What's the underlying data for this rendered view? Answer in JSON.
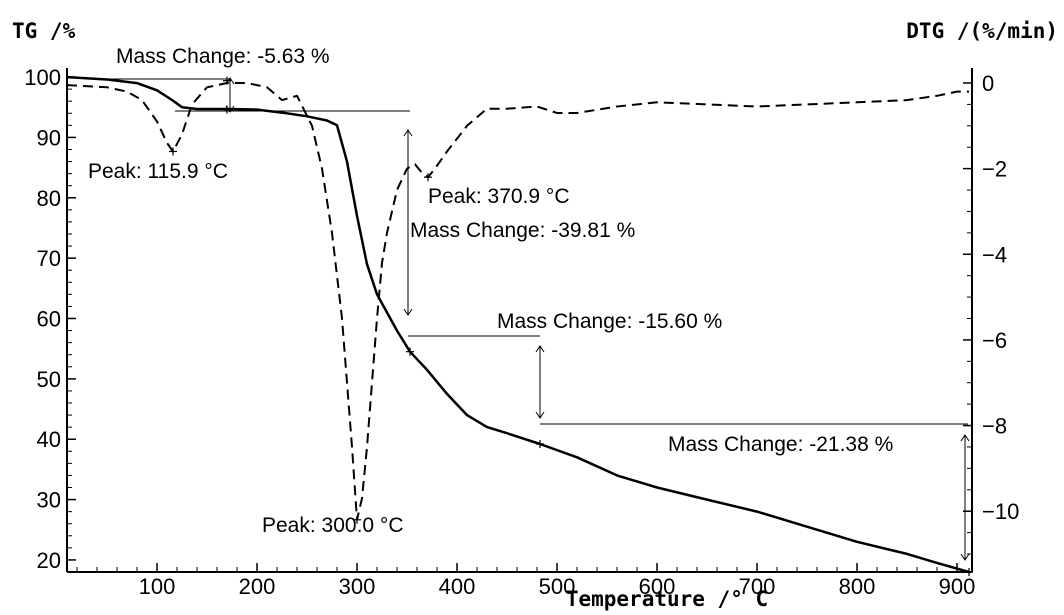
{
  "chart_data": {
    "type": "line",
    "left_axis_title": "TG /%",
    "right_axis_title": "DTG /(%/min)",
    "xlabel": "Temperature /° C",
    "xlim": [
      10,
      915
    ],
    "ylim_left": [
      18,
      101.5
    ],
    "ylim_right": [
      -11.42,
      0.35
    ],
    "x_ticks": [
      100,
      200,
      300,
      400,
      500,
      600,
      700,
      800,
      900
    ],
    "y_left_ticks": [
      20,
      30,
      40,
      50,
      60,
      70,
      80,
      90,
      100
    ],
    "y_right_ticks": [
      0,
      -2,
      -4,
      -6,
      -8,
      -10
    ],
    "grid": false,
    "series": [
      {
        "style": "solid",
        "axis": "left",
        "x": [
          10,
          50,
          80,
          100,
          115,
          125,
          140,
          170,
          200,
          230,
          250,
          270,
          280,
          290,
          300,
          310,
          320,
          330,
          340,
          353,
          370,
          390,
          410,
          430,
          450,
          483,
          520,
          560,
          600,
          650,
          700,
          750,
          800,
          850,
          880,
          912
        ],
        "y": [
          100,
          99.6,
          99,
          97.8,
          96.2,
          95,
          94.7,
          94.7,
          94.6,
          94,
          93.5,
          92.8,
          92,
          86,
          77,
          69,
          64,
          61,
          58,
          54.5,
          51.5,
          47.5,
          44,
          42,
          41,
          39.2,
          37,
          34,
          32,
          30,
          28,
          25.5,
          23,
          21,
          19.5,
          18
        ]
      },
      {
        "style": "dashed",
        "axis": "right",
        "x": [
          10,
          50,
          70,
          85,
          100,
          110,
          116,
          125,
          135,
          150,
          170,
          190,
          210,
          225,
          240,
          255,
          265,
          275,
          285,
          290,
          295,
          300,
          305,
          310,
          315,
          320,
          325,
          330,
          340,
          350,
          358,
          365,
          371,
          378,
          390,
          410,
          430,
          450,
          480,
          500,
          520,
          560,
          600,
          650,
          700,
          750,
          800,
          850,
          880,
          900,
          912
        ],
        "y": [
          -0.05,
          -0.1,
          -0.2,
          -0.4,
          -0.9,
          -1.4,
          -1.6,
          -1.2,
          -0.5,
          -0.1,
          0.0,
          0.0,
          -0.1,
          -0.4,
          -0.3,
          -1.0,
          -2.0,
          -3.5,
          -5.5,
          -7,
          -8.5,
          -10.2,
          -9.7,
          -8.5,
          -7.0,
          -5.5,
          -4.2,
          -3.5,
          -2.5,
          -2.0,
          -1.9,
          -2.1,
          -2.2,
          -2.0,
          -1.6,
          -1.0,
          -0.6,
          -0.6,
          -0.55,
          -0.7,
          -0.7,
          -0.55,
          -0.45,
          -0.5,
          -0.55,
          -0.5,
          -0.45,
          -0.4,
          -0.3,
          -0.2,
          -0.2
        ]
      }
    ],
    "tg_markers": [
      {
        "x": 170,
        "y": 99.4
      },
      {
        "x": 170,
        "y": 94.6
      },
      {
        "x": 353,
        "y": 54.5
      },
      {
        "x": 483,
        "y": 39.2
      },
      {
        "x": 912,
        "y": 18
      }
    ],
    "dtg_markers": [
      {
        "x": 116,
        "y": -1.6
      },
      {
        "x": 300,
        "y": -10.2
      },
      {
        "x": 371,
        "y": -2.2
      }
    ],
    "annotations": [
      {
        "text": "Mass Change: -5.63 %"
      },
      {
        "text": "Peak: 115.9 °C"
      },
      {
        "text": "Peak: 370.9 °C"
      },
      {
        "text": "Mass Change: -39.81 %"
      },
      {
        "text": "Mass Change: -15.60 %"
      },
      {
        "text": "Mass Change: -21.38 %"
      },
      {
        "text": "Peak: 300.0 °C"
      }
    ]
  }
}
